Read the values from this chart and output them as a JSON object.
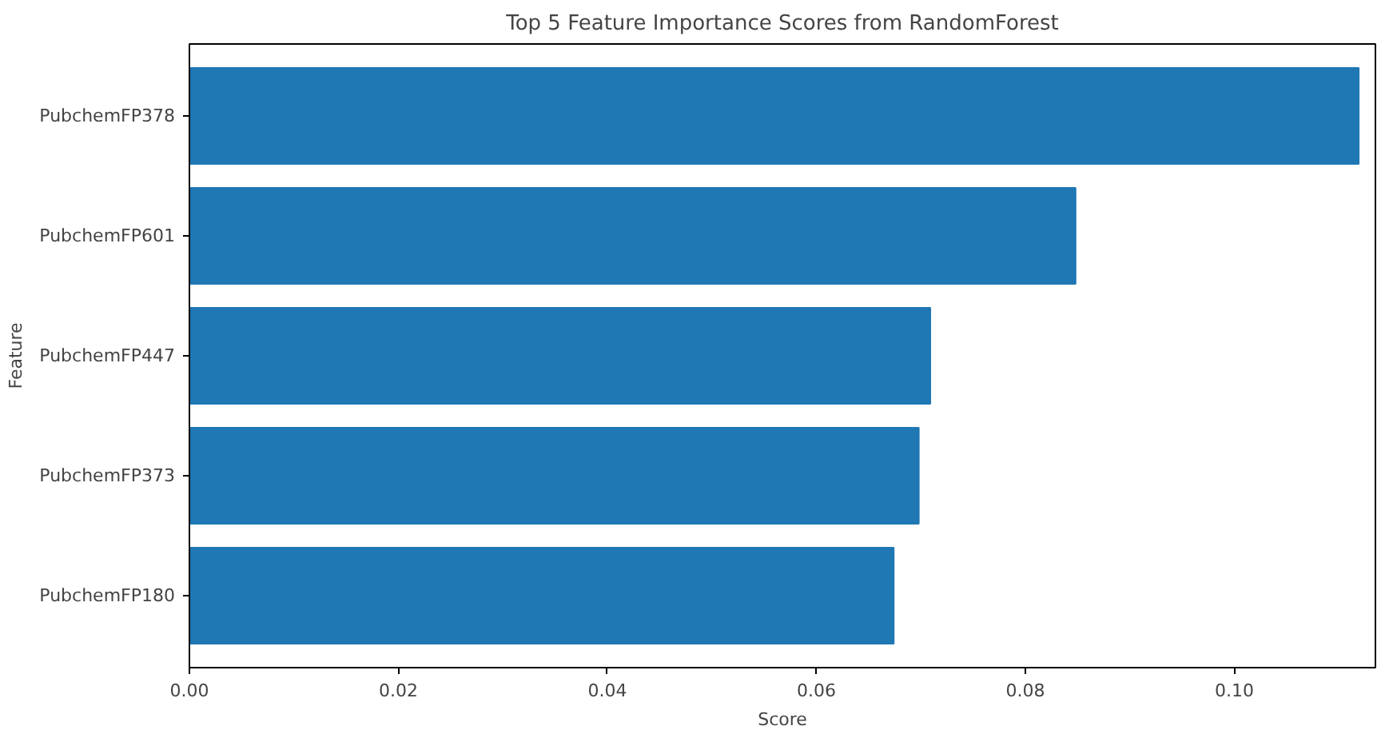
{
  "chart_data": {
    "type": "bar",
    "orientation": "horizontal",
    "title": "Top 5 Feature Importance Scores from RandomForest",
    "xlabel": "Score",
    "ylabel": "Feature",
    "categories": [
      "PubchemFP378",
      "PubchemFP601",
      "PubchemFP447",
      "PubchemFP373",
      "PubchemFP180"
    ],
    "values": [
      0.1119,
      0.0848,
      0.0709,
      0.0698,
      0.0674
    ],
    "color": "#1f77b4",
    "xlim": [
      0,
      0.1135
    ],
    "xticks": [
      {
        "value": 0,
        "label": "0.00"
      },
      0.02,
      0.04,
      0.06,
      0.08,
      {
        "value": 0.1,
        "label": "0.10"
      }
    ],
    "grid": false
  }
}
